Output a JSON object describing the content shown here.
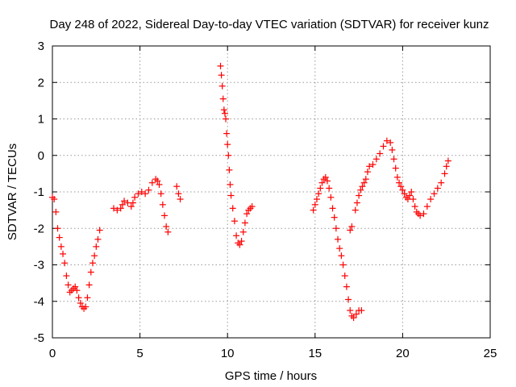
{
  "chart_data": {
    "type": "scatter",
    "title": "Day 248 of 2022, Sidereal Day-to-day VTEC variation (SDTVAR) for receiver kunz",
    "xlabel": "GPS time / hours",
    "ylabel": "SDTVAR / TECUs",
    "xlim": [
      0,
      25
    ],
    "ylim": [
      -5,
      3
    ],
    "xticks": [
      "0",
      "5",
      "10",
      "15",
      "20",
      "25"
    ],
    "yticks": [
      "3",
      "2",
      "1",
      "0",
      "-1",
      "-2",
      "-3",
      "-4",
      "-5"
    ],
    "grid": true,
    "marker": "plus",
    "series": [
      {
        "color": "#ff0000",
        "segments": [
          [
            [
              0.0,
              -1.15
            ],
            [
              0.1,
              -1.2
            ],
            [
              0.2,
              -1.55
            ],
            [
              0.3,
              -2.0
            ],
            [
              0.4,
              -2.25
            ],
            [
              0.5,
              -2.5
            ],
            [
              0.6,
              -2.7
            ],
            [
              0.7,
              -2.95
            ],
            [
              0.8,
              -3.3
            ],
            [
              0.9,
              -3.55
            ],
            [
              1.0,
              -3.75
            ],
            [
              1.1,
              -3.7
            ],
            [
              1.2,
              -3.65
            ],
            [
              1.3,
              -3.6
            ],
            [
              1.4,
              -3.7
            ],
            [
              1.5,
              -3.9
            ],
            [
              1.6,
              -4.05
            ],
            [
              1.7,
              -4.15
            ],
            [
              1.8,
              -4.2
            ],
            [
              1.9,
              -4.15
            ],
            [
              2.0,
              -3.9
            ],
            [
              2.1,
              -3.55
            ],
            [
              2.2,
              -3.2
            ],
            [
              2.3,
              -2.95
            ],
            [
              2.4,
              -2.75
            ],
            [
              2.5,
              -2.5
            ],
            [
              2.6,
              -2.3
            ],
            [
              2.7,
              -2.05
            ]
          ],
          [
            [
              3.5,
              -1.45
            ],
            [
              3.7,
              -1.5
            ],
            [
              3.9,
              -1.45
            ],
            [
              4.0,
              -1.35
            ],
            [
              4.1,
              -1.25
            ],
            [
              4.3,
              -1.3
            ],
            [
              4.5,
              -1.4
            ],
            [
              4.6,
              -1.3
            ],
            [
              4.7,
              -1.15
            ],
            [
              4.9,
              -1.05
            ],
            [
              5.1,
              -1.0
            ],
            [
              5.3,
              -1.05
            ],
            [
              5.5,
              -0.95
            ],
            [
              5.7,
              -0.75
            ],
            [
              5.9,
              -0.65
            ],
            [
              6.0,
              -0.7
            ],
            [
              6.1,
              -0.8
            ],
            [
              6.2,
              -1.05
            ],
            [
              6.3,
              -1.35
            ],
            [
              6.4,
              -1.65
            ],
            [
              6.5,
              -1.95
            ],
            [
              6.6,
              -2.1
            ]
          ],
          [
            [
              7.1,
              -0.85
            ],
            [
              7.2,
              -1.05
            ],
            [
              7.3,
              -1.2
            ]
          ],
          [
            [
              9.6,
              2.45
            ],
            [
              9.65,
              2.2
            ],
            [
              9.7,
              1.9
            ],
            [
              9.75,
              1.55
            ],
            [
              9.8,
              1.25
            ],
            [
              9.85,
              1.15
            ],
            [
              9.9,
              1.0
            ],
            [
              9.95,
              0.6
            ],
            [
              10.0,
              0.3
            ],
            [
              10.05,
              0.0
            ],
            [
              10.1,
              -0.4
            ],
            [
              10.15,
              -0.8
            ],
            [
              10.2,
              -1.1
            ],
            [
              10.3,
              -1.45
            ],
            [
              10.4,
              -1.8
            ],
            [
              10.5,
              -2.2
            ],
            [
              10.6,
              -2.4
            ],
            [
              10.7,
              -2.45
            ],
            [
              10.8,
              -2.35
            ],
            [
              10.9,
              -2.1
            ],
            [
              11.0,
              -1.85
            ],
            [
              11.1,
              -1.6
            ],
            [
              11.2,
              -1.5
            ],
            [
              11.3,
              -1.45
            ],
            [
              11.4,
              -1.4
            ]
          ],
          [
            [
              14.9,
              -1.5
            ],
            [
              15.0,
              -1.35
            ],
            [
              15.1,
              -1.2
            ],
            [
              15.2,
              -1.05
            ],
            [
              15.3,
              -0.9
            ],
            [
              15.4,
              -0.75
            ],
            [
              15.5,
              -0.65
            ],
            [
              15.6,
              -0.6
            ],
            [
              15.7,
              -0.7
            ],
            [
              15.8,
              -0.9
            ],
            [
              15.9,
              -1.15
            ],
            [
              16.0,
              -1.45
            ],
            [
              16.1,
              -1.7
            ],
            [
              16.2,
              -2.0
            ],
            [
              16.3,
              -2.3
            ],
            [
              16.4,
              -2.55
            ],
            [
              16.5,
              -2.75
            ],
            [
              16.6,
              -3.0
            ],
            [
              16.7,
              -3.3
            ],
            [
              16.8,
              -3.6
            ],
            [
              16.9,
              -3.95
            ],
            [
              17.0,
              -4.25
            ],
            [
              17.1,
              -4.4
            ],
            [
              17.2,
              -4.45
            ],
            [
              17.35,
              -4.35
            ],
            [
              17.5,
              -4.25
            ],
            [
              17.65,
              -4.25
            ]
          ],
          [
            [
              17.0,
              -2.05
            ],
            [
              17.1,
              -1.95
            ],
            [
              17.3,
              -1.5
            ],
            [
              17.4,
              -1.3
            ],
            [
              17.5,
              -1.1
            ],
            [
              17.6,
              -0.95
            ],
            [
              17.7,
              -0.85
            ],
            [
              17.8,
              -0.75
            ],
            [
              17.9,
              -0.65
            ],
            [
              18.0,
              -0.45
            ],
            [
              18.1,
              -0.3
            ],
            [
              18.3,
              -0.25
            ],
            [
              18.5,
              -0.1
            ],
            [
              18.7,
              0.05
            ],
            [
              18.9,
              0.25
            ],
            [
              19.1,
              0.4
            ],
            [
              19.3,
              0.35
            ],
            [
              19.4,
              0.15
            ],
            [
              19.5,
              -0.1
            ],
            [
              19.6,
              -0.35
            ],
            [
              19.7,
              -0.6
            ],
            [
              19.8,
              -0.75
            ],
            [
              19.9,
              -0.85
            ],
            [
              20.0,
              -0.95
            ],
            [
              20.1,
              -1.05
            ],
            [
              20.2,
              -1.15
            ],
            [
              20.3,
              -1.2
            ],
            [
              20.4,
              -1.1
            ],
            [
              20.5,
              -1.0
            ],
            [
              20.6,
              -1.2
            ],
            [
              20.7,
              -1.4
            ],
            [
              20.8,
              -1.55
            ],
            [
              20.9,
              -1.6
            ],
            [
              21.0,
              -1.65
            ],
            [
              21.2,
              -1.6
            ],
            [
              21.4,
              -1.4
            ],
            [
              21.6,
              -1.2
            ],
            [
              21.8,
              -1.05
            ],
            [
              22.0,
              -0.9
            ],
            [
              22.2,
              -0.75
            ],
            [
              22.4,
              -0.5
            ],
            [
              22.5,
              -0.3
            ],
            [
              22.6,
              -0.15
            ]
          ]
        ]
      }
    ]
  }
}
